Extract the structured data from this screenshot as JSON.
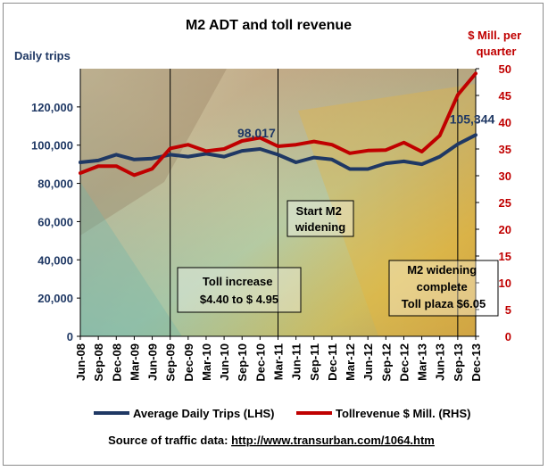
{
  "chart_data": {
    "type": "line",
    "title": "M2 ADT and  toll revenue",
    "ylabel_left": "Daily trips",
    "ylabel_right": "$ Mill. per quarter",
    "ylabel_right_lines": [
      "$ Mill. per",
      "quarter"
    ],
    "ylim_left": [
      0,
      140000
    ],
    "ylim_right": [
      0,
      50
    ],
    "yticks_left": [
      "0",
      "20,000",
      "40,000",
      "60,000",
      "80,000",
      "100,000",
      "120,000"
    ],
    "yticks_right": [
      "0",
      "5",
      "10",
      "15",
      "20",
      "25",
      "30",
      "35",
      "40",
      "45",
      "50"
    ],
    "x": [
      "Jun-08",
      "Sep-08",
      "Dec-08",
      "Mar-09",
      "Jun-09",
      "Sep-09",
      "Dec-09",
      "Mar-10",
      "Jun-10",
      "Sep-10",
      "Dec-10",
      "Mar-11",
      "Jun-11",
      "Sep-11",
      "Dec-11",
      "Mar-12",
      "Jun-12",
      "Sep-12",
      "Dec-12",
      "Mar-13",
      "Jun-13",
      "Sep-13",
      "Dec-13"
    ],
    "series": [
      {
        "name": "Average Daily Trips (LHS)",
        "axis": "left",
        "color": "#1f3864",
        "values": [
          91000,
          92000,
          95000,
          92500,
          93000,
          95000,
          94000,
          95500,
          94000,
          97000,
          98017,
          95000,
          91000,
          93500,
          92500,
          87500,
          87500,
          90500,
          91500,
          90000,
          94000,
          100500,
          105344
        ]
      },
      {
        "name": "Tollrevenue $ Mill. (RHS)",
        "axis": "right",
        "color": "#c00000",
        "values": [
          30.5,
          31.8,
          31.8,
          30.1,
          31.3,
          35.1,
          35.8,
          34.6,
          35.0,
          36.5,
          37.1,
          35.5,
          35.8,
          36.4,
          35.8,
          34.2,
          34.7,
          34.8,
          36.2,
          34.5,
          37.5,
          45.1,
          49.1
        ]
      }
    ],
    "data_labels": [
      {
        "series": 0,
        "index": 10,
        "text": "98,017"
      },
      {
        "series": 0,
        "index": 22,
        "text": "105,344"
      }
    ],
    "event_lines_at": [
      "Sep-09",
      "Mar-11",
      "Sep-13"
    ],
    "annotations": [
      {
        "id": "toll-increase",
        "lines": [
          "Toll increase",
          "$4.40 to $ 4.95"
        ]
      },
      {
        "id": "start-widening",
        "lines": [
          "Start M2",
          "widening"
        ]
      },
      {
        "id": "widening-complete",
        "lines": [
          "M2 widening",
          "complete",
          "Toll plaza $6.05"
        ]
      }
    ],
    "legend_position": "bottom",
    "grid": false,
    "source_label": "Source of traffic data: ",
    "source_link": "http://www.transurban.com/1064.htm"
  }
}
